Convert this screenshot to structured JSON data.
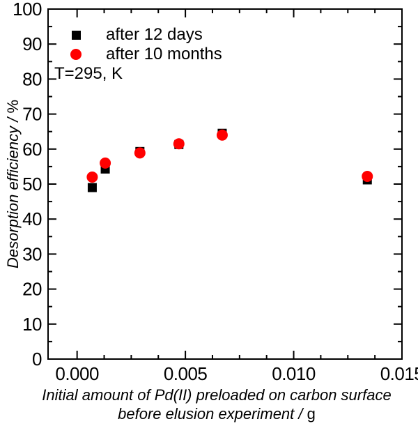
{
  "figure": {
    "background": "#ffffff",
    "frame_color": "#000000",
    "text_color": "#000000"
  },
  "annotations": {
    "temperature": "T=295, K"
  },
  "legend": {
    "position": "upper-left-inside",
    "items": [
      {
        "label": "after 12 days",
        "marker": "square",
        "color": "#000000"
      },
      {
        "label": "after 10 months",
        "marker": "circle",
        "color": "#ff0000"
      }
    ]
  },
  "chart_data": {
    "type": "scatter",
    "title": "",
    "xlabel": "Initial amount of Pd(II) preloaded on carbon surface before elusion experiment / g",
    "xlabel_line1": "Initial amount of Pd(II) preloaded on carbon surface",
    "xlabel_line2_italic": "before elusion experiment / ",
    "xlabel_line2_unit": "g",
    "ylabel_italic": "Desorption efficiency / ",
    "ylabel_unit": "%",
    "xlim": [
      -0.00134,
      0.015
    ],
    "ylim": [
      0,
      100
    ],
    "grid": false,
    "x_major_ticks": [
      0.0,
      0.005,
      0.01,
      0.015
    ],
    "x_tick_labels": [
      "0.000",
      "0.005",
      "0.010",
      "0.015"
    ],
    "x_minor_step": 0.00125,
    "y_major_step": 10,
    "y_minor_step": 5,
    "x_values": [
      0.0007,
      0.0013,
      0.0029,
      0.0047,
      0.0067,
      0.0134
    ],
    "series": [
      {
        "name": "after 12 days",
        "marker": "square",
        "color": "#000000",
        "values": [
          49.0,
          54.3,
          59.3,
          61.3,
          64.5,
          51.2
        ]
      },
      {
        "name": "after 10 months",
        "marker": "circle",
        "color": "#ff0000",
        "values": [
          52.0,
          56.0,
          58.9,
          61.5,
          64.0,
          52.2
        ]
      }
    ]
  }
}
